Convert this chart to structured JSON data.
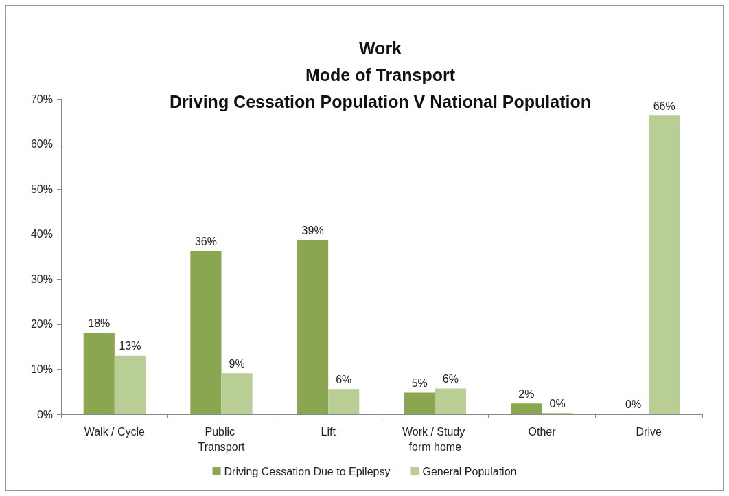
{
  "chart_data": {
    "type": "bar",
    "title": "Work\nMode of Transport\nDriving Cessation Population V National Population",
    "categories": [
      "Walk / Cycle",
      "Public Transport",
      "Lift",
      "Work / Study form home",
      "Other",
      "Drive"
    ],
    "series": [
      {
        "name": "Driving Cessation Due to Epilepsy",
        "color": "#8aa64e",
        "values": [
          18,
          36.2,
          38.6,
          4.8,
          2.4,
          0
        ],
        "value_labels": [
          "18%",
          "36%",
          "39%",
          "5%",
          "2%",
          "0%"
        ]
      },
      {
        "name": "General Population",
        "color": "#b8ce94",
        "values": [
          13,
          9.1,
          5.6,
          5.7,
          0.3,
          66.3
        ],
        "value_labels": [
          "13%",
          "9%",
          "6%",
          "6%",
          "0%",
          "66%"
        ]
      }
    ],
    "ylim": [
      0,
      70
    ],
    "yticks": [
      {
        "value": 0,
        "label": "0%"
      },
      {
        "value": 10,
        "label": "10%"
      },
      {
        "value": 20,
        "label": "20%"
      },
      {
        "value": 30,
        "label": "30%"
      },
      {
        "value": 40,
        "label": "40%"
      },
      {
        "value": 50,
        "label": "50%"
      },
      {
        "value": 60,
        "label": "60%"
      },
      {
        "value": 70,
        "label": "70%"
      }
    ],
    "grid": false,
    "legend": "bottom"
  }
}
